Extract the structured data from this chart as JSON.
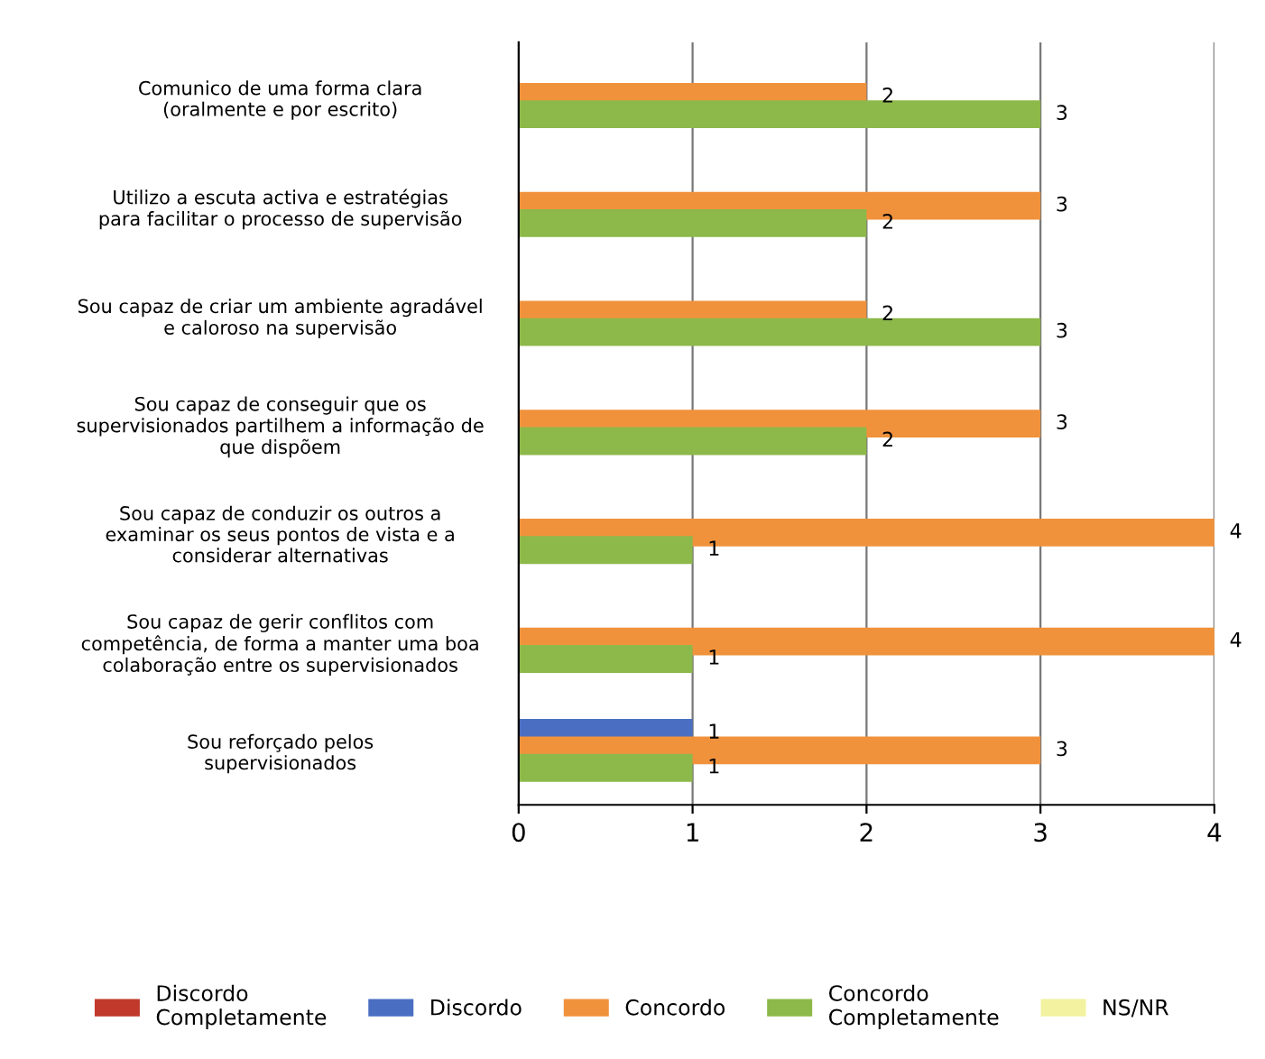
{
  "chart_data": {
    "type": "bar",
    "orientation": "horizontal",
    "categories": [
      "Comunico de uma forma clara\n(oralmente e por escrito)",
      "Utilizo a escuta activa e estratégias\npara facilitar o processo de supervisão",
      "Sou capaz de criar um ambiente agradável\ne caloroso na supervisão",
      "Sou capaz de conseguir que os\nsupervisionados partilhem a informação de\nque dispõem",
      "Sou capaz de conduzir os outros a\nexaminar os seus pontos de vista e a\nconsiderar alternativas",
      "Sou capaz de gerir conflitos com\ncompetência, de forma a manter uma boa\ncolaboração entre os supervisionados",
      "Sou reforçado pelos\nsupervisionados"
    ],
    "series": [
      {
        "name": "Discordo Completamente",
        "color": "#c0392b",
        "values": [
          null,
          null,
          null,
          null,
          null,
          null,
          null
        ]
      },
      {
        "name": "Discordo",
        "color": "#4a6fc2",
        "values": [
          null,
          null,
          null,
          null,
          null,
          null,
          1
        ]
      },
      {
        "name": "Concordo",
        "color": "#f0923c",
        "values": [
          2,
          3,
          2,
          3,
          4,
          4,
          3
        ]
      },
      {
        "name": "Concordo Completamente",
        "color": "#8db84a",
        "values": [
          3,
          2,
          3,
          2,
          1,
          1,
          1
        ]
      },
      {
        "name": "NS/NR",
        "color": "#f2f2a0",
        "values": [
          null,
          null,
          null,
          null,
          null,
          null,
          null
        ]
      }
    ],
    "xlim": [
      0,
      4
    ],
    "xticks": [
      0,
      1,
      2,
      3,
      4
    ],
    "grid": "x",
    "legend": "bottom",
    "data_labels": true
  }
}
